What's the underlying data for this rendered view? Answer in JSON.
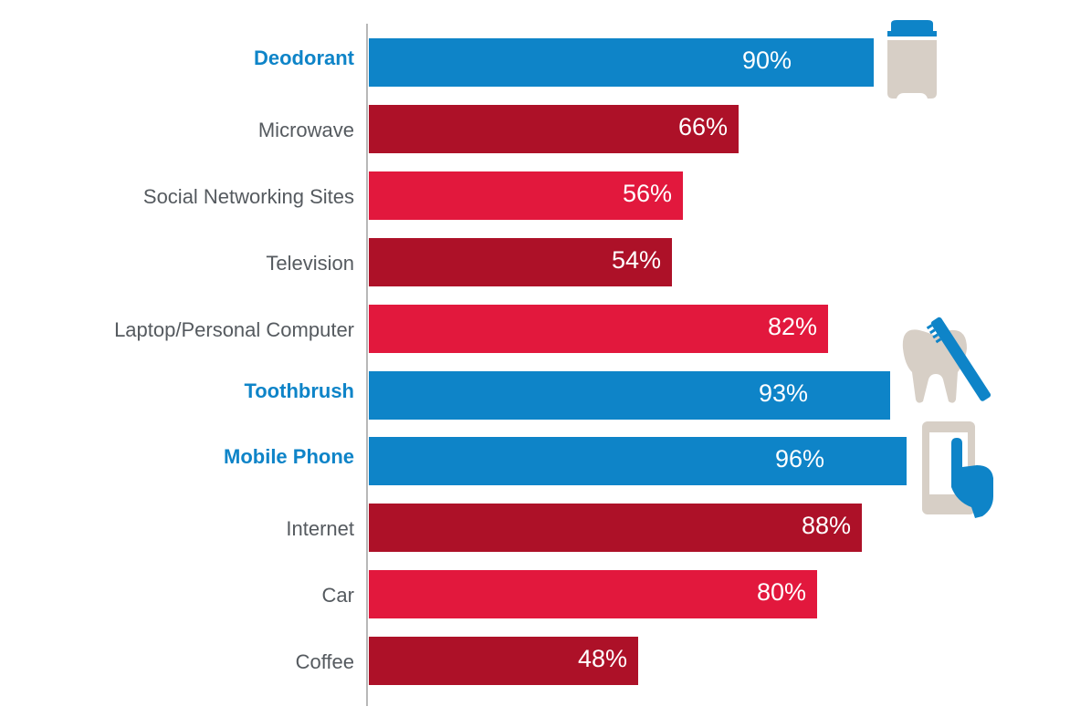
{
  "colors": {
    "highlight": "#0e84c8",
    "dark_red": "#ad1128",
    "red": "#e2183d",
    "highlight_label": "#0e84c8",
    "label": "#555a5f",
    "icon_gray": "#d7cfc6"
  },
  "chart_data": {
    "type": "bar",
    "orientation": "horizontal",
    "xlim": [
      0,
      100
    ],
    "unit": "%",
    "categories": [
      "Deodorant",
      "Microwave",
      "Social Networking Sites",
      "Television",
      "Laptop/Personal Computer",
      "Toothbrush",
      "Mobile Phone",
      "Internet",
      "Car",
      "Coffee"
    ],
    "values": [
      90,
      66,
      56,
      54,
      82,
      93,
      96,
      88,
      80,
      48
    ],
    "value_labels": [
      "90%",
      "66%",
      "56%",
      "54%",
      "82%",
      "93%",
      "96%",
      "88%",
      "80%",
      "48%"
    ],
    "bar_colors": [
      "highlight",
      "dark_red",
      "red",
      "dark_red",
      "red",
      "highlight",
      "highlight",
      "dark_red",
      "red",
      "dark_red"
    ],
    "highlighted": [
      true,
      false,
      false,
      false,
      false,
      true,
      true,
      false,
      false,
      false
    ]
  },
  "icons": [
    "deodorant-icon",
    "tooth-toothbrush-icon",
    "mobile-phone-hand-icon"
  ]
}
